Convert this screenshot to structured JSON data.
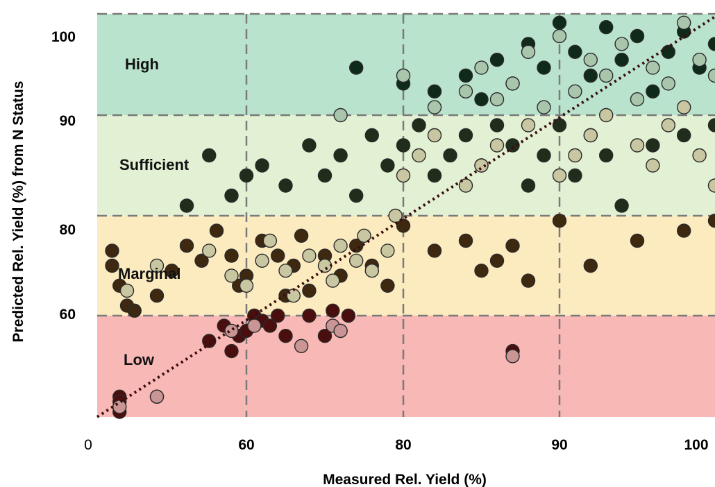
{
  "chart_data": {
    "type": "scatter",
    "title": "",
    "xlabel": "Measured Rel. Yield (%)",
    "ylabel": "Predicted Rel. Yield (%) from N Status",
    "x_ticks": [
      {
        "label": "0",
        "bold": false
      },
      {
        "label": "60",
        "bold": true
      },
      {
        "label": "80",
        "bold": true
      },
      {
        "label": "90",
        "bold": true
      },
      {
        "label": "100",
        "bold": true
      }
    ],
    "y_ticks": [
      {
        "label": "100"
      },
      {
        "label": "90"
      },
      {
        "label": "80"
      },
      {
        "label": "60"
      }
    ],
    "zones": [
      {
        "name": "High",
        "y_range": [
          90,
          105
        ],
        "color": "#b9e3cd"
      },
      {
        "name": "Sufficient",
        "y_range": [
          80,
          90
        ],
        "color": "#e2f0d3"
      },
      {
        "name": "Marginal",
        "y_range": [
          60,
          80
        ],
        "color": "#fdebc0"
      },
      {
        "name": "Low",
        "y_range": [
          40,
          60
        ],
        "color": "#f8b8b6"
      }
    ],
    "reference_line": "1:1",
    "grid": true,
    "point_colors": {
      "High": "#0f2a19",
      "Sufficient": "#1f2d1a",
      "Marginal": "#3e2810",
      "Low": "#4a0e0e",
      "light": "#c9c6a2",
      "light_high": "#a9c6ad",
      "light_low": "#c99595"
    },
    "series": [
      {
        "group": "Low",
        "x": [
          43,
          43,
          43,
          48,
          55,
          57,
          58,
          59,
          60,
          61,
          62,
          63,
          64,
          65,
          68,
          70,
          71,
          72,
          73,
          87
        ],
        "y": [
          44,
          43,
          41,
          44,
          55,
          58,
          53,
          56,
          57,
          60,
          59,
          58,
          60,
          56,
          60,
          56,
          61,
          57,
          60,
          53
        ]
      },
      {
        "group": "Marginal",
        "x": [
          42,
          42,
          43,
          44,
          45,
          48,
          50,
          52,
          54,
          56,
          58,
          59,
          60,
          62,
          64,
          65,
          66,
          67,
          68,
          70,
          72,
          74,
          76,
          78,
          80,
          82,
          84,
          85,
          86,
          87,
          88,
          90,
          92,
          95,
          98,
          100
        ],
        "y": [
          73,
          70,
          66,
          62,
          61,
          64,
          69,
          74,
          71,
          77,
          72,
          66,
          68,
          75,
          72,
          64,
          70,
          76,
          65,
          72,
          68,
          74,
          70,
          66,
          78,
          73,
          75,
          69,
          71,
          74,
          67,
          79,
          70,
          75,
          77,
          79
        ]
      },
      {
        "group": "Sufficient",
        "x": [
          52,
          55,
          58,
          60,
          62,
          65,
          68,
          70,
          72,
          74,
          76,
          78,
          80,
          81,
          82,
          83,
          84,
          85,
          86,
          87,
          88,
          89,
          90,
          91,
          92,
          93,
          94,
          96,
          98,
          100
        ],
        "y": [
          81,
          86,
          82,
          84,
          85,
          83,
          87,
          84,
          86,
          82,
          88,
          85,
          87,
          89,
          84,
          86,
          88,
          85,
          89,
          87,
          83,
          86,
          89,
          84,
          88,
          86,
          81,
          87,
          88,
          89
        ]
      },
      {
        "group": "High",
        "x": [
          74,
          80,
          82,
          84,
          85,
          86,
          87,
          88,
          89,
          90,
          91,
          92,
          93,
          94,
          95,
          96,
          97,
          98,
          99,
          100
        ],
        "y": [
          96,
          94,
          93,
          95,
          92,
          97,
          94,
          99,
          96,
          103,
          98,
          95,
          102,
          97,
          100,
          93,
          98,
          101,
          96,
          99
        ]
      },
      {
        "group": "light",
        "x": [
          44,
          48,
          55,
          58,
          60,
          62,
          63,
          65,
          66,
          68,
          70,
          71,
          72,
          74,
          75,
          76,
          78,
          79,
          80,
          81,
          82,
          84,
          85,
          86,
          88,
          90,
          91,
          92,
          93,
          95,
          96,
          97,
          98,
          99,
          100
        ],
        "y": [
          65,
          70,
          73,
          68,
          66,
          71,
          75,
          69,
          64,
          72,
          70,
          67,
          74,
          71,
          76,
          69,
          73,
          80,
          84,
          86,
          88,
          83,
          85,
          87,
          89,
          84,
          86,
          88,
          90,
          87,
          85,
          89,
          91,
          86,
          83
        ]
      },
      {
        "group": "light_high",
        "x": [
          72,
          80,
          82,
          84,
          85,
          86,
          87,
          88,
          89,
          90,
          91,
          92,
          93,
          94,
          95,
          96,
          97,
          98,
          99,
          100
        ],
        "y": [
          90,
          95,
          91,
          93,
          96,
          92,
          94,
          98,
          91,
          100,
          93,
          97,
          95,
          99,
          92,
          96,
          94,
          103,
          97,
          95
        ]
      },
      {
        "group": "light_low",
        "x": [
          43,
          48,
          58,
          61,
          67,
          71,
          72,
          87
        ],
        "y": [
          42,
          44,
          57,
          58,
          54,
          58,
          57,
          52
        ]
      }
    ]
  }
}
